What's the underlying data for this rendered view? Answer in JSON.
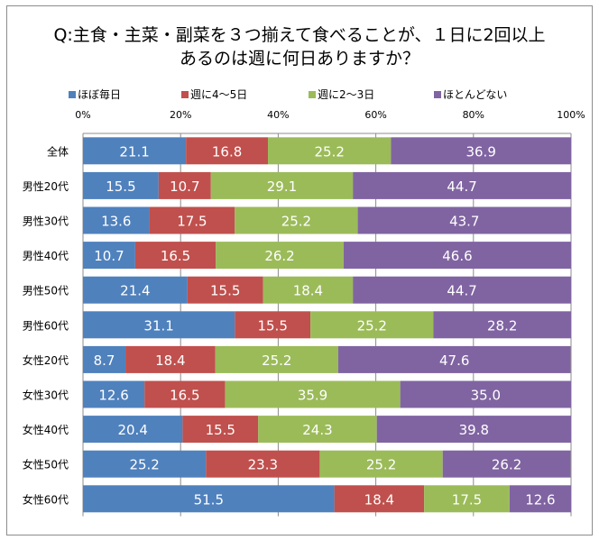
{
  "chart_data": {
    "type": "bar",
    "orientation": "horizontal",
    "stacked": true,
    "title": [
      "Q:主食・主菜・副菜を３つ揃えて食べることが、１日に2回以上",
      "あるのは週に何日ありますか？"
    ],
    "xlabel": "",
    "ylabel": "",
    "xlim": [
      0,
      100
    ],
    "x_ticks": [
      "0%",
      "20%",
      "40%",
      "60%",
      "80%",
      "100%"
    ],
    "grid": true,
    "legend_position": "top",
    "categories": [
      "全体",
      "男性20代",
      "男性30代",
      "男性40代",
      "男性50代",
      "男性60代",
      "女性20代",
      "女性30代",
      "女性40代",
      "女性50代",
      "女性60代"
    ],
    "series": [
      {
        "name": "ほぼ毎日",
        "color": "#4f81bd",
        "values": [
          21.1,
          15.5,
          13.6,
          10.7,
          21.4,
          31.1,
          8.7,
          12.6,
          20.4,
          25.2,
          51.5
        ]
      },
      {
        "name": "週に4～5日",
        "color": "#c0504d",
        "values": [
          16.8,
          10.7,
          17.5,
          16.5,
          15.5,
          15.5,
          18.4,
          16.5,
          15.5,
          23.3,
          18.4
        ]
      },
      {
        "name": "週に2～3日",
        "color": "#9bbb59",
        "values": [
          25.2,
          29.1,
          25.2,
          26.2,
          18.4,
          25.2,
          25.2,
          35.9,
          24.3,
          25.2,
          17.5
        ]
      },
      {
        "name": "ほとんどない",
        "color": "#8064a2",
        "values": [
          36.9,
          44.7,
          43.7,
          46.6,
          44.7,
          28.2,
          47.6,
          35.0,
          39.8,
          26.2,
          12.6
        ]
      }
    ]
  }
}
